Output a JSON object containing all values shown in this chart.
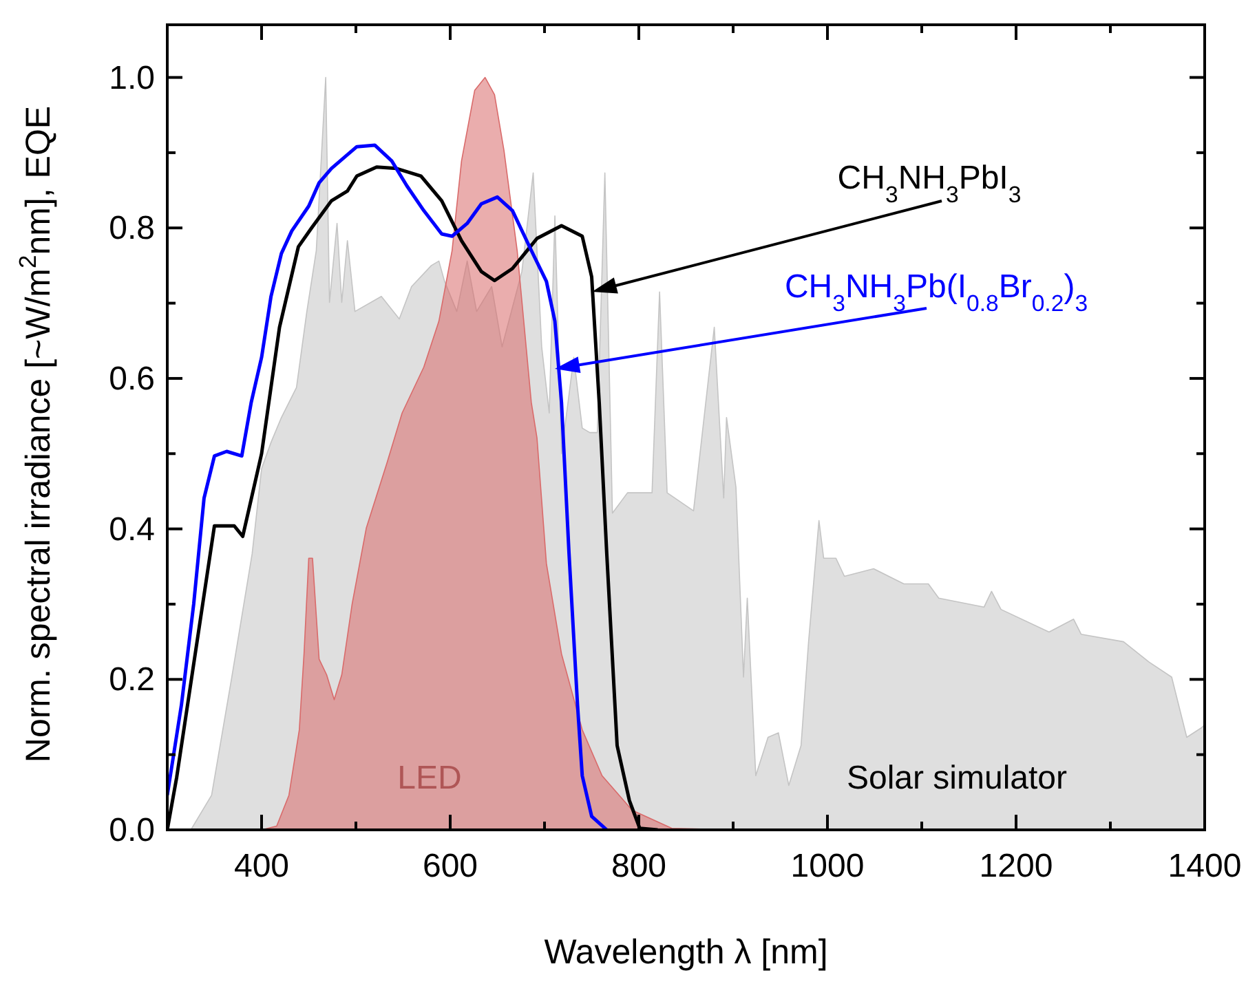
{
  "chart_data": {
    "type": "area",
    "xlabel": "Wavelength λ [nm]",
    "ylabel": "Norm. spectral irradiance [~W/m$^{2}$nm], EQE",
    "xlim": [
      300,
      1400
    ],
    "ylim": [
      0,
      1.07
    ],
    "xticks": [
      {
        "value": 300,
        "label": null
      },
      400,
      {
        "value": 500,
        "label": null
      },
      600,
      {
        "value": 700,
        "label": null
      },
      800,
      {
        "value": 900,
        "label": null
      },
      1000,
      {
        "value": 1100,
        "label": null
      },
      1200,
      {
        "value": 1300,
        "label": null
      },
      1400
    ],
    "yticks": [
      {
        "value": 0,
        "label": "0.0"
      },
      {
        "value": 0.1,
        "label": null
      },
      0.2,
      {
        "value": 0.3,
        "label": null
      },
      0.4,
      {
        "value": 0.5,
        "label": null
      },
      0.6,
      {
        "value": 0.7,
        "label": null
      },
      0.8,
      {
        "value": 0.9,
        "label": null
      },
      {
        "value": 1,
        "label": "1.0"
      }
    ],
    "grid": false,
    "legend": false,
    "series": [
      {
        "name": "Solar simulator",
        "color": "#c4c4c4",
        "x": [
          300,
          325,
          347,
          368,
          390,
          400,
          410,
          421,
          437,
          448,
          458,
          468,
          472,
          480,
          485,
          491,
          499,
          527,
          546,
          559,
          580,
          588,
          594,
          607,
          618,
          628,
          644,
          655,
          676,
          688,
          697,
          705,
          711,
          718,
          731,
          740,
          748,
          756,
          764,
          772,
          788,
          814,
          822,
          830,
          858,
          880,
          890,
          893,
          903,
          911,
          915,
          924,
          937,
          948,
          959,
          972,
          980,
          991,
          996,
          1009,
          1018,
          1049,
          1081,
          1107,
          1118,
          1166,
          1174,
          1184,
          1235,
          1261,
          1269,
          1314,
          1341,
          1365,
          1381,
          1397,
          1400
        ],
        "values": [
          0,
          0,
          0.046,
          0.2,
          0.367,
          0.48,
          0.515,
          0.548,
          0.588,
          0.689,
          0.77,
          1.0,
          0.701,
          0.806,
          0.701,
          0.783,
          0.689,
          0.709,
          0.679,
          0.722,
          0.75,
          0.756,
          0.729,
          0.689,
          0.756,
          0.689,
          0.722,
          0.642,
          0.742,
          0.873,
          0.642,
          0.554,
          0.816,
          0.5,
          0.628,
          0.534,
          0.528,
          0.528,
          0.873,
          0.421,
          0.448,
          0.448,
          0.715,
          0.448,
          0.424,
          0.668,
          0.441,
          0.548,
          0.455,
          0.203,
          0.308,
          0.072,
          0.123,
          0.129,
          0.059,
          0.112,
          0.25,
          0.411,
          0.361,
          0.361,
          0.337,
          0.347,
          0.327,
          0.327,
          0.308,
          0.296,
          0.317,
          0.293,
          0.263,
          0.28,
          0.26,
          0.25,
          0.223,
          0.203,
          0.123,
          0.136,
          0.14
        ]
      },
      {
        "name": "LED",
        "color": "#d96a6a",
        "x": [
          300,
          400,
          416,
          429,
          440,
          445,
          450,
          454,
          461,
          469,
          477,
          485,
          496,
          511,
          533,
          549,
          572,
          588,
          602,
          612,
          626,
          637,
          647,
          657,
          671,
          686,
          692,
          702,
          718,
          740,
          761,
          793,
          835,
          901,
          1000
        ],
        "values": [
          0,
          0,
          0.005,
          0.046,
          0.133,
          0.234,
          0.361,
          0.361,
          0.227,
          0.206,
          0.173,
          0.206,
          0.3,
          0.401,
          0.488,
          0.554,
          0.615,
          0.676,
          0.77,
          0.889,
          0.983,
          1.0,
          0.977,
          0.903,
          0.77,
          0.568,
          0.521,
          0.354,
          0.234,
          0.133,
          0.072,
          0.026,
          0.002,
          0,
          0
        ]
      },
      {
        "name": "CH$_{3}$NH$_{3}$PbI$_{3}$",
        "type": "line",
        "color": "#000000",
        "x": [
          300,
          310,
          350,
          371,
          380,
          400,
          419,
          439,
          453,
          474,
          491,
          501,
          522,
          543,
          569,
          591,
          612,
          633,
          647,
          666,
          692,
          718,
          740,
          750,
          758,
          766,
          777,
          790,
          801,
          820
        ],
        "values": [
          0,
          0.07,
          0.404,
          0.404,
          0.39,
          0.5,
          0.668,
          0.775,
          0.8,
          0.836,
          0.849,
          0.869,
          0.881,
          0.879,
          0.869,
          0.836,
          0.783,
          0.742,
          0.73,
          0.746,
          0.786,
          0.803,
          0.789,
          0.735,
          0.568,
          0.367,
          0.112,
          0.039,
          0.002,
          0
        ]
      },
      {
        "name": "CH$_{3}$NH$_{3}$Pb(I$_{0.8}$Br$_{0.2}$)$_{3}$",
        "type": "line",
        "color": "#0000ff",
        "x": [
          300,
          315,
          328,
          339,
          350,
          363,
          379,
          389,
          400,
          410,
          421,
          432,
          450,
          461,
          474,
          501,
          520,
          538,
          554,
          572,
          591,
          602,
          618,
          633,
          650,
          666,
          686,
          702,
          711,
          718,
          726,
          735,
          740,
          750,
          766
        ],
        "values": [
          0.046,
          0.166,
          0.3,
          0.441,
          0.497,
          0.503,
          0.497,
          0.568,
          0.628,
          0.709,
          0.766,
          0.796,
          0.829,
          0.86,
          0.879,
          0.908,
          0.91,
          0.889,
          0.856,
          0.823,
          0.792,
          0.789,
          0.806,
          0.832,
          0.841,
          0.823,
          0.77,
          0.729,
          0.676,
          0.568,
          0.367,
          0.166,
          0.072,
          0.018,
          0
        ]
      }
    ]
  }
}
